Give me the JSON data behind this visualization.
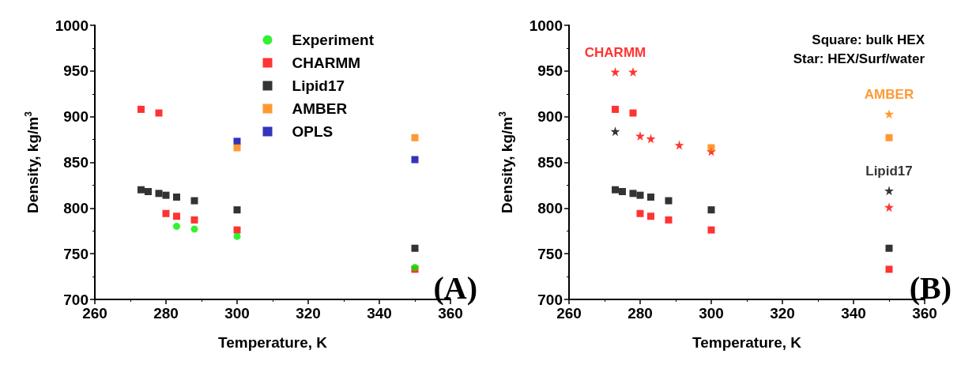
{
  "chart_data": [
    {
      "type": "scatter",
      "xlabel": "Temperature, K",
      "ylabel": "Density, kg/m$^{3}$",
      "xlim": [
        260,
        360
      ],
      "xticks": [
        260,
        280,
        300,
        320,
        340,
        360
      ],
      "ylim": [
        700,
        1000
      ],
      "yticks": [
        700,
        750,
        800,
        850,
        900,
        950,
        1000
      ],
      "grid": false,
      "legend": "top right",
      "annotations": [
        "(A)"
      ],
      "series": [
        {
          "name": "Experiment",
          "color": "#00ee00",
          "marker": "circle",
          "x": [
            283,
            288,
            300,
            350
          ],
          "values": [
            780,
            777,
            769,
            735
          ]
        },
        {
          "name": "CHARMM",
          "color": "#ff0000",
          "marker": "square",
          "x": [
            273,
            278,
            280,
            283,
            288,
            300,
            350
          ],
          "values": [
            908,
            904,
            794,
            791,
            787,
            776,
            733
          ]
        },
        {
          "name": "Lipid17",
          "color": "#000000",
          "marker": "square",
          "x": [
            273,
            275,
            278,
            280,
            283,
            288,
            300,
            350
          ],
          "values": [
            820,
            818,
            816,
            814,
            812,
            808,
            798,
            756
          ]
        },
        {
          "name": "AMBER",
          "color": "#ff8000",
          "marker": "square",
          "x": [
            300,
            350
          ],
          "values": [
            866,
            877
          ]
        },
        {
          "name": "OPLS",
          "color": "#0000aa",
          "marker": "square",
          "x": [
            300,
            350
          ],
          "values": [
            873,
            853
          ]
        }
      ]
    },
    {
      "type": "scatter",
      "xlabel": "Temperature, K",
      "ylabel": "Density, kg/m$^{3}$",
      "xlim": [
        260,
        360
      ],
      "xticks": [
        260,
        280,
        300,
        320,
        340,
        360
      ],
      "ylim": [
        700,
        1000
      ],
      "yticks": [
        700,
        750,
        800,
        850,
        900,
        950,
        1000
      ],
      "grid": false,
      "legend": false,
      "annotations": [
        "Square: bulk HEX",
        "Star: HEX/Surf/water",
        "(B)"
      ],
      "series": [
        {
          "color": "#ff0000",
          "marker": "square",
          "x": [
            273,
            278,
            280,
            283,
            288,
            300,
            350
          ],
          "values": [
            908,
            904,
            794,
            791,
            787,
            776,
            733
          ]
        },
        {
          "color": "#000000",
          "marker": "square",
          "x": [
            273,
            275,
            278,
            280,
            283,
            288,
            300,
            350
          ],
          "values": [
            820,
            818,
            816,
            814,
            812,
            808,
            798,
            756
          ]
        },
        {
          "color": "#ff8000",
          "marker": "square",
          "x": [
            300,
            350
          ],
          "values": [
            866,
            877
          ]
        },
        {
          "name": "CHARMM",
          "color": "#ff0000",
          "marker": "star",
          "x": [
            350,
            300,
            291,
            283,
            280,
            278,
            273
          ],
          "values": [
            801,
            862,
            869,
            876,
            879,
            949,
            949
          ]
        },
        {
          "name": "Lipid17",
          "color": "#000000",
          "marker": "star",
          "x": [
            273,
            350
          ],
          "values": [
            884,
            819
          ]
        },
        {
          "name": "AMBER",
          "color": "#ff8000",
          "marker": "star",
          "x": [
            350
          ],
          "values": [
            903
          ]
        }
      ]
    }
  ]
}
